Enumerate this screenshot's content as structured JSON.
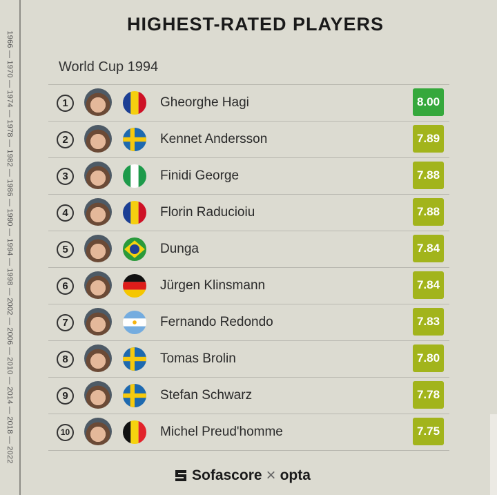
{
  "timeline": "1966 — 1970 — 1974 — 1978 — 1982 — 1986 — 1990 — 1994 — 1998 — 2002 — 2006 — 2010 — 2014 — 2018 — 2022",
  "title": "HIGHEST-RATED PLAYERS",
  "subtitle": "World Cup 1994",
  "colors": {
    "top_rating": "#35a83c",
    "rating": "#a2b41b",
    "background": "#dcdbd1"
  },
  "players": [
    {
      "rank": "1",
      "name": "Gheorghe Hagi",
      "country": "romania",
      "rating": "8.00"
    },
    {
      "rank": "2",
      "name": "Kennet Andersson",
      "country": "sweden",
      "rating": "7.89"
    },
    {
      "rank": "3",
      "name": "Finidi George",
      "country": "nigeria",
      "rating": "7.88"
    },
    {
      "rank": "4",
      "name": "Florin Raducioiu",
      "country": "romania",
      "rating": "7.88"
    },
    {
      "rank": "5",
      "name": "Dunga",
      "country": "brazil",
      "rating": "7.84"
    },
    {
      "rank": "6",
      "name": "Jürgen Klinsmann",
      "country": "germany",
      "rating": "7.84"
    },
    {
      "rank": "7",
      "name": "Fernando Redondo",
      "country": "argentina",
      "rating": "7.83"
    },
    {
      "rank": "8",
      "name": "Tomas Brolin",
      "country": "sweden",
      "rating": "7.80"
    },
    {
      "rank": "9",
      "name": "Stefan Schwarz",
      "country": "sweden",
      "rating": "7.78"
    },
    {
      "rank": "10",
      "name": "Michel Preud'homme",
      "country": "belgium",
      "rating": "7.75"
    }
  ],
  "footer": {
    "brand1": "Sofascore",
    "separator": "×",
    "brand2": "opta"
  }
}
